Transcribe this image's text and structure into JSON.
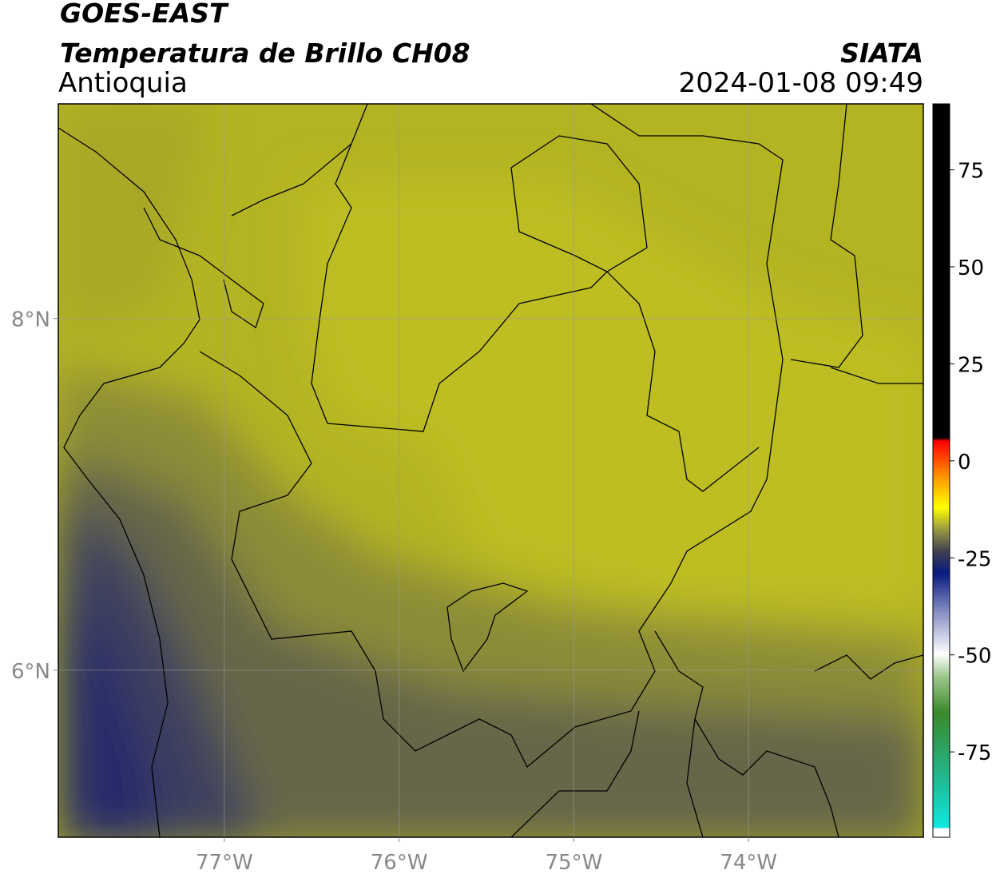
{
  "header": {
    "satellite": "GOES-EAST",
    "product": "Temperatura de Brillo CH08",
    "region": "Antioquia",
    "source": "SIATA",
    "datetime": "2024-01-08 09:49"
  },
  "map": {
    "xlim": [
      -77.95,
      -73.0
    ],
    "ylim": [
      5.05,
      9.22
    ],
    "xticks": [
      {
        "value": -77,
        "label": "77°W"
      },
      {
        "value": -76,
        "label": "76°W"
      },
      {
        "value": -75,
        "label": "75°W"
      },
      {
        "value": -74,
        "label": "74°W"
      }
    ],
    "yticks": [
      {
        "value": 6,
        "label": "6°N"
      },
      {
        "value": 8,
        "label": "8°N"
      }
    ]
  },
  "colorbar": {
    "lim": [
      -97,
      92
    ],
    "ticks": [
      -75,
      -50,
      -25,
      0,
      25,
      50,
      75
    ]
  }
}
